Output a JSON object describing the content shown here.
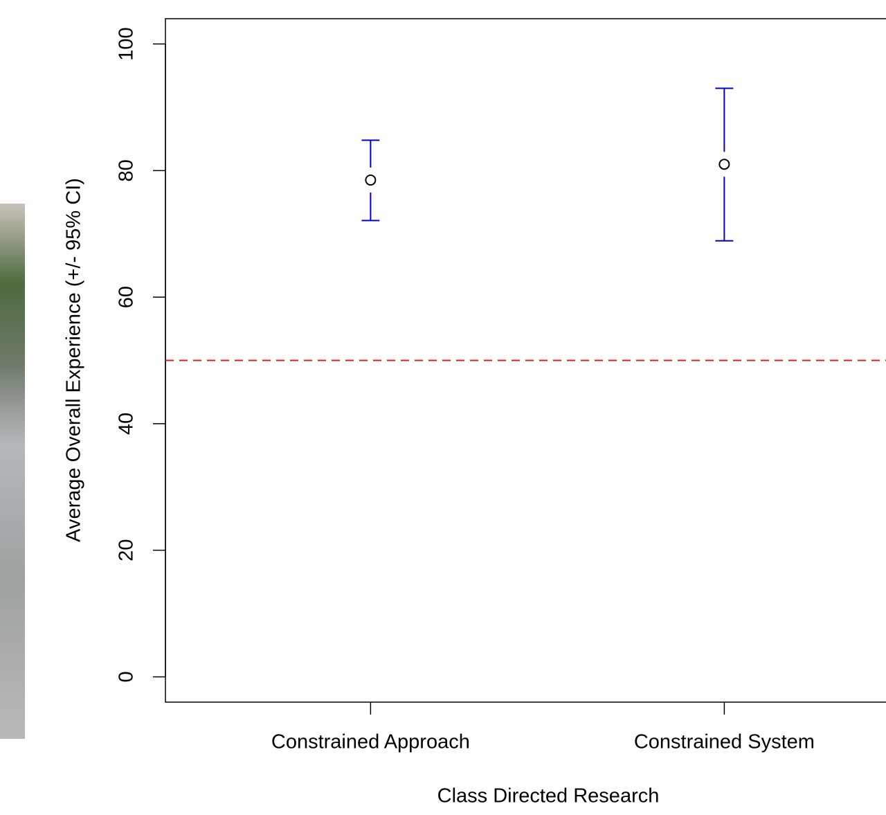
{
  "chart_data": {
    "type": "errorbar",
    "x_label": "Class Directed Research",
    "y_label": "Average Overall Experience (+/- 95% CI)",
    "categories": [
      "Constrained Approach",
      "Constrained System"
    ],
    "series": [
      {
        "color": "#0000cc",
        "values": [
          78.5,
          81.0
        ],
        "lower": [
          72.1,
          68.9
        ],
        "upper": [
          84.8,
          93.0
        ]
      }
    ],
    "ylim": [
      -4,
      104
    ],
    "yticks": [
      0,
      20,
      40,
      60,
      80,
      100
    ],
    "reference_line": {
      "value": 50,
      "color": "#e31a1c"
    }
  }
}
